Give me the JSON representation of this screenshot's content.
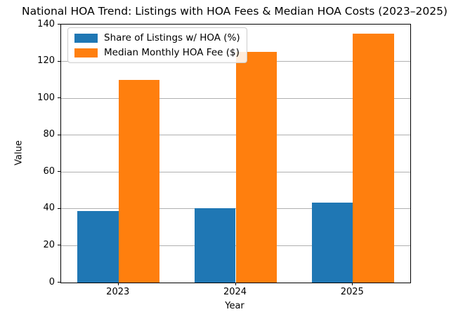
{
  "chart_data": {
    "type": "bar",
    "title": "National HOA Trend: Listings with HOA Fees & Median HOA Costs (2023–2025)",
    "xlabel": "Year",
    "ylabel": "Value",
    "categories": [
      "2023",
      "2024",
      "2025"
    ],
    "series": [
      {
        "name": "Share of Listings w/ HOA (%)",
        "color": "#1f77b4",
        "values": [
          39,
          40.5,
          43.5
        ]
      },
      {
        "name": "Median Monthly HOA Fee ($)",
        "color": "#ff7f0e",
        "values": [
          110,
          125,
          135
        ]
      }
    ],
    "ylim": [
      0,
      140
    ],
    "yticks": [
      0,
      20,
      40,
      60,
      80,
      100,
      120,
      140
    ],
    "xlim": [
      -0.49,
      2.49
    ],
    "bar_width": 0.35,
    "bar_center_offsets": [
      -0.175,
      0.175
    ],
    "grid": "horizontal",
    "grid_color": "#b0b0b0",
    "legend_position": "upper-left",
    "colors": {
      "axis": "#000000",
      "text": "#000000",
      "legend_border": "#cccccc",
      "background": "#ffffff"
    }
  }
}
